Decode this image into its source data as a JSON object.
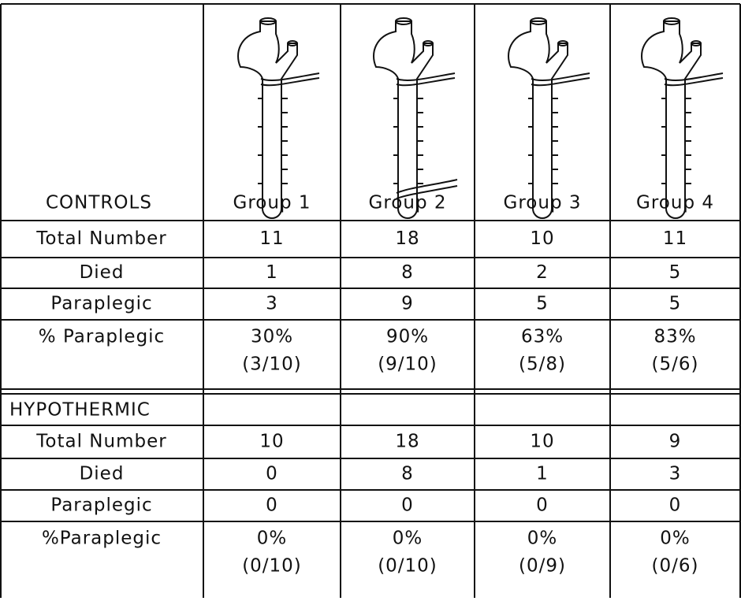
{
  "header": {
    "corner": "CONTROLS",
    "groups": [
      "Group 1",
      "Group 2",
      "Group 3",
      "Group 4"
    ]
  },
  "controls": {
    "rows": [
      {
        "label": "Total Number",
        "cells": [
          "11",
          "18",
          "10",
          "11"
        ]
      },
      {
        "label": "Died",
        "cells": [
          "1",
          "8",
          "2",
          "5"
        ]
      },
      {
        "label": "Paraplegic",
        "cells": [
          "3",
          "9",
          "5",
          "5"
        ]
      },
      {
        "label": "% Paraplegic",
        "cells": [
          [
            "30%",
            "(3/10)"
          ],
          [
            "90%",
            "(9/10)"
          ],
          [
            "63%",
            "(5/8)"
          ],
          [
            "83%",
            "(5/6)"
          ]
        ]
      }
    ]
  },
  "hypothermic": {
    "title": "HYPOTHERMIC",
    "rows": [
      {
        "label": "Total Number",
        "cells": [
          "10",
          "18",
          "10",
          "9"
        ]
      },
      {
        "label": "Died",
        "cells": [
          "0",
          "8",
          "1",
          "3"
        ]
      },
      {
        "label": "Paraplegic",
        "cells": [
          "0",
          "0",
          "0",
          "0"
        ]
      },
      {
        "label": "%Paraplegic",
        "cells": [
          [
            "0%",
            "(0/10)"
          ],
          [
            "0%",
            "(0/10)"
          ],
          [
            "0%",
            "(0/9)"
          ],
          [
            "0%",
            "(0/6)"
          ]
        ]
      }
    ]
  }
}
